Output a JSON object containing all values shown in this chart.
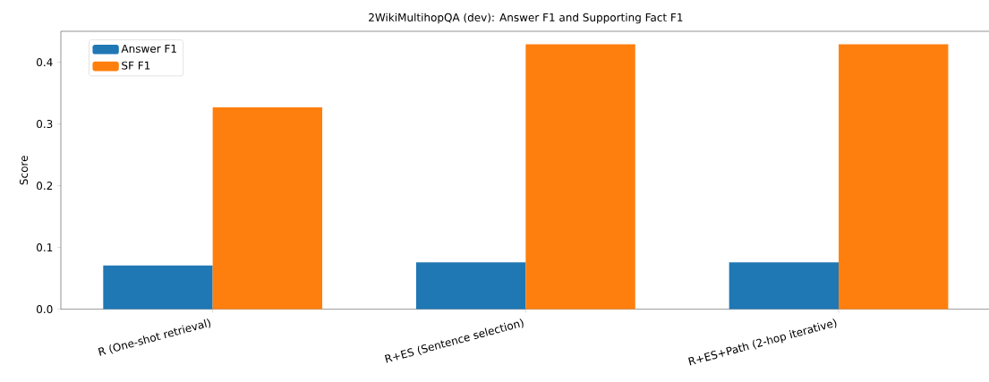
{
  "chart_data": {
    "type": "bar",
    "title": "2WikiMultihopQA (dev): Answer F1 and Supporting Fact F1",
    "categories": [
      "R (One-shot retrieval)",
      "R+ES (Sentence selection)",
      "R+ES+Path (2-hop iterative)"
    ],
    "series": [
      {
        "name": "Answer F1",
        "color": "#1f77b4",
        "values": [
          0.071,
          0.076,
          0.076
        ]
      },
      {
        "name": "SF F1",
        "color": "#ff7f0e",
        "values": [
          0.327,
          0.429,
          0.429
        ]
      }
    ],
    "ylabel": "Score",
    "ylim": [
      0,
      0.45
    ],
    "yticks": [
      {
        "value": 0,
        "label": "0.0"
      },
      0.1,
      0.2,
      0.3,
      0.4
    ],
    "legend": "top left",
    "grid": false
  }
}
